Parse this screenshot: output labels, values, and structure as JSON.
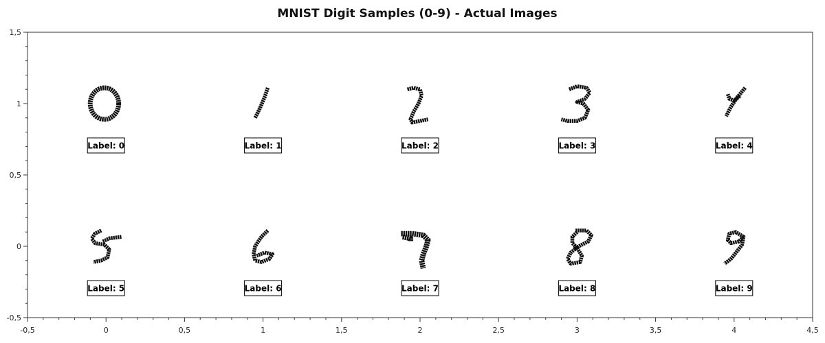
{
  "chart_data": {
    "type": "scatter",
    "title": "MNIST Digit Samples (0-9) - Actual Images",
    "xlabel": "",
    "ylabel": "",
    "xlim": [
      -0.5,
      4.5
    ],
    "ylim": [
      -0.5,
      1.5
    ],
    "x_ticks": [
      "-0,5",
      "0",
      "0,5",
      "1",
      "1,5",
      "2",
      "2,5",
      "3",
      "3,5",
      "4",
      "4,5"
    ],
    "y_ticks": [
      "-0,5",
      "0",
      "0,5",
      "1",
      "1,5"
    ],
    "grid": false,
    "samples": [
      {
        "digit": 0,
        "label": "Label: 0",
        "x": 0,
        "y": 1
      },
      {
        "digit": 1,
        "label": "Label: 1",
        "x": 1,
        "y": 1
      },
      {
        "digit": 2,
        "label": "Label: 2",
        "x": 2,
        "y": 1
      },
      {
        "digit": 3,
        "label": "Label: 3",
        "x": 3,
        "y": 1
      },
      {
        "digit": 4,
        "label": "Label: 4",
        "x": 4,
        "y": 1
      },
      {
        "digit": 5,
        "label": "Label: 5",
        "x": 0,
        "y": 0
      },
      {
        "digit": 6,
        "label": "Label: 6",
        "x": 1,
        "y": 0
      },
      {
        "digit": 7,
        "label": "Label: 7",
        "x": 2,
        "y": 0
      },
      {
        "digit": 8,
        "label": "Label: 8",
        "x": 3,
        "y": 0
      },
      {
        "digit": 9,
        "label": "Label: 9",
        "x": 4,
        "y": 0
      }
    ]
  }
}
